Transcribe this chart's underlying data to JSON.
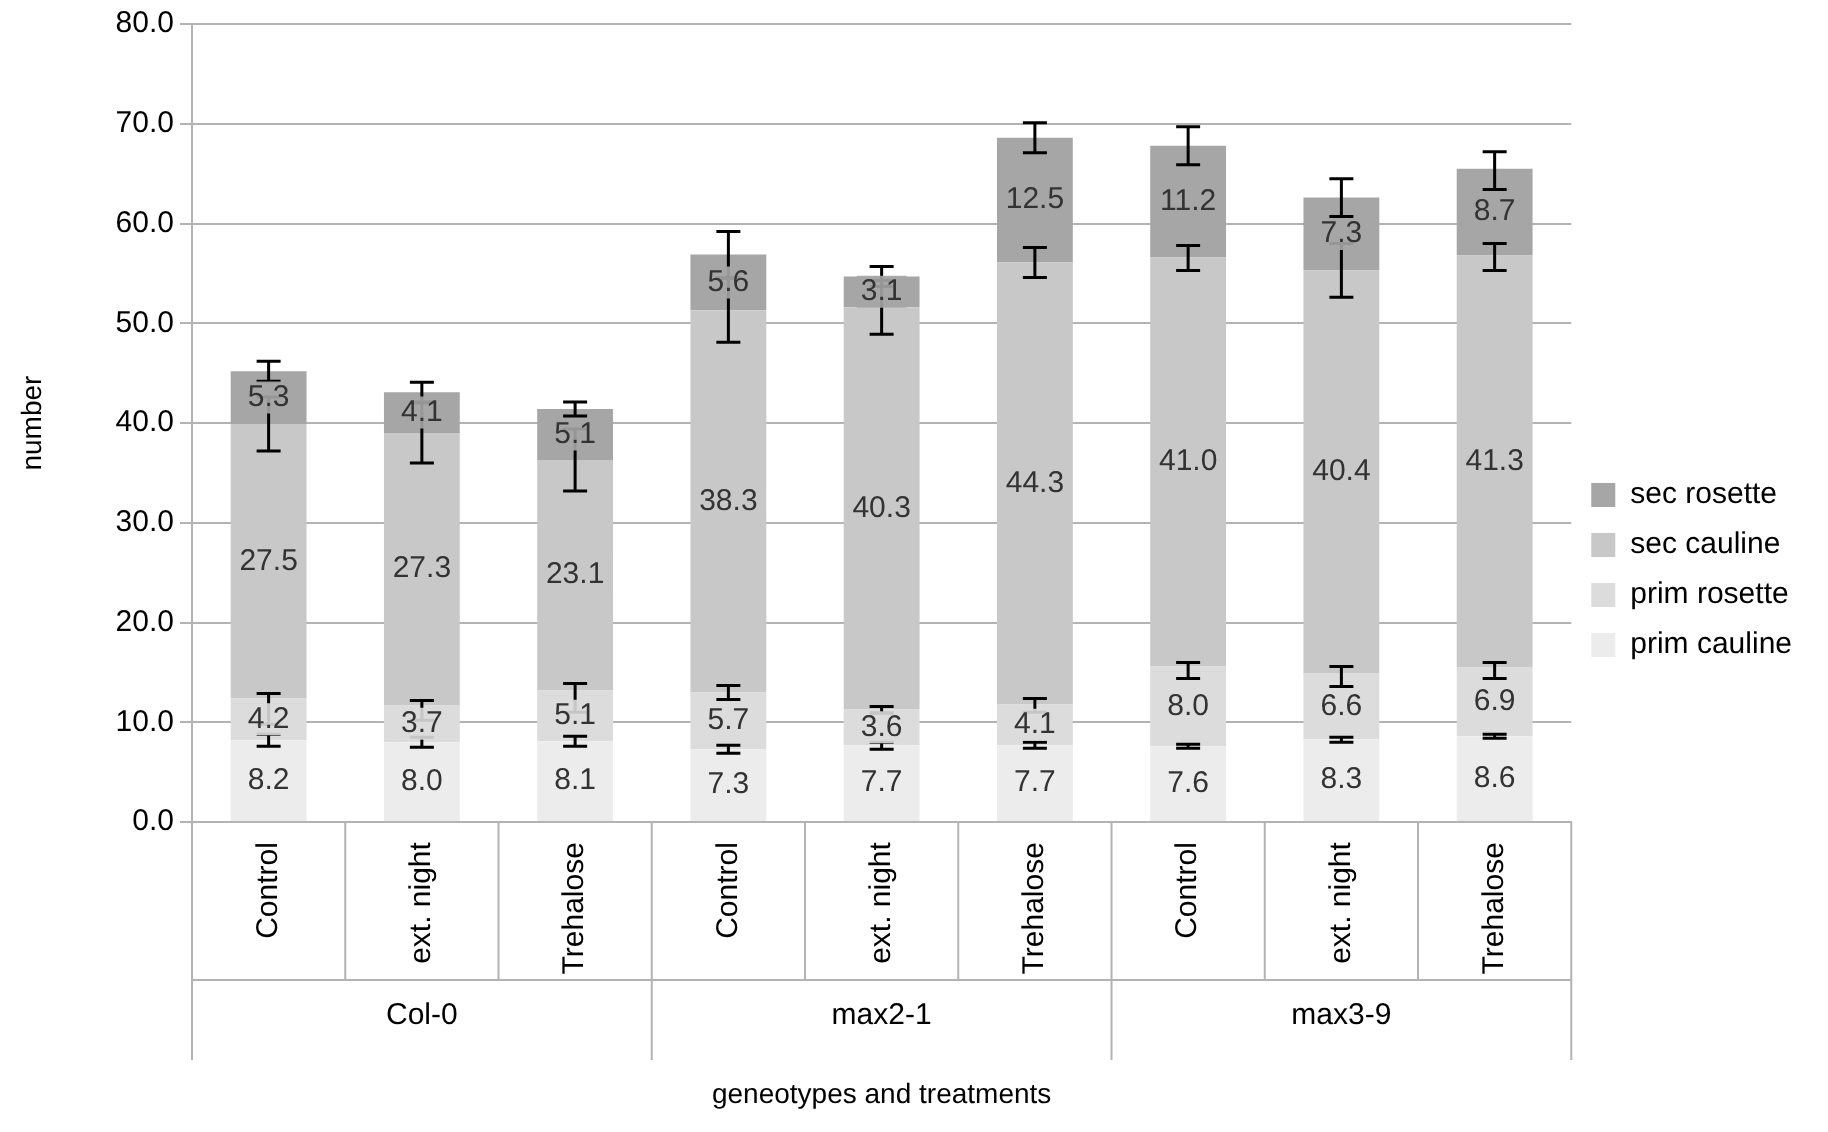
{
  "chart_data": {
    "type": "bar",
    "stacked": true,
    "xlabel": "geneotypes and treatments",
    "ylabel": "number",
    "categories": [
      "Control",
      "ext. night",
      "Trehalose",
      "Control",
      "ext. night",
      "Trehalose",
      "Control",
      "ext. night",
      "Trehalose"
    ],
    "annotations": [
      "Col-0",
      "max2-1",
      "max3-9"
    ],
    "series": [
      {
        "name": "prim cauline",
        "color": "#ececec",
        "values": [
          8.2,
          8.0,
          8.1,
          7.3,
          7.7,
          7.7,
          7.6,
          8.3,
          8.6
        ],
        "value_labels": [
          "8.2",
          "8.0",
          "8.1",
          "7.3",
          "7.7",
          "7.7",
          "7.6",
          "8.3",
          "8.6"
        ],
        "errors": [
          [
            7.6,
            8.8
          ],
          [
            7.5,
            8.5
          ],
          [
            7.6,
            8.6
          ],
          [
            6.9,
            7.7
          ],
          [
            7.3,
            8.0
          ],
          [
            7.4,
            8.0
          ],
          [
            7.4,
            7.8
          ],
          [
            8.0,
            8.5
          ],
          [
            8.4,
            8.8
          ]
        ]
      },
      {
        "name": "prim rosette",
        "color": "#dcdcdc",
        "values": [
          4.2,
          3.7,
          5.1,
          5.7,
          3.6,
          4.1,
          8.0,
          6.6,
          6.9
        ],
        "value_labels": [
          "4.2",
          "3.7",
          "5.1",
          "5.7",
          "3.6",
          "4.1",
          "8.0",
          "6.6",
          "6.9"
        ],
        "errors": [
          [
            9.8,
            12.9
          ],
          [
            10.2,
            12.2
          ],
          [
            11.0,
            13.9
          ],
          [
            12.3,
            13.7
          ],
          [
            10.9,
            11.6
          ],
          [
            11.0,
            12.4
          ],
          [
            14.4,
            16.0
          ],
          [
            13.6,
            15.6
          ],
          [
            14.4,
            16.0
          ]
        ]
      },
      {
        "name": "sec cauline",
        "color": "#c8c8c8",
        "values": [
          27.5,
          27.3,
          23.1,
          38.3,
          40.3,
          44.3,
          41.0,
          40.4,
          41.3
        ],
        "value_labels": [
          "27.5",
          "27.3",
          "23.1",
          "38.3",
          "40.3",
          "44.3",
          "41.0",
          "40.4",
          "41.3"
        ],
        "errors": [
          [
            37.2,
            42.6
          ],
          [
            36.0,
            42.0
          ],
          [
            33.2,
            39.4
          ],
          [
            48.1,
            54.5
          ],
          [
            48.9,
            54.3
          ],
          [
            54.6,
            57.6
          ],
          [
            55.3,
            57.8
          ],
          [
            52.6,
            58.0
          ],
          [
            55.3,
            58.0
          ]
        ]
      },
      {
        "name": "sec rosette",
        "color": "#a6a6a6",
        "values": [
          5.3,
          4.1,
          5.1,
          5.6,
          3.1,
          12.5,
          11.2,
          7.3,
          8.7
        ],
        "value_labels": [
          "5.3",
          "4.1",
          "5.1",
          "5.6",
          "3.1",
          "12.5",
          "11.2",
          "7.3",
          "8.7"
        ],
        "errors": [
          [
            44.2,
            46.2
          ],
          [
            42.1,
            44.1
          ],
          [
            40.7,
            42.1
          ],
          [
            54.6,
            59.2
          ],
          [
            53.7,
            55.7
          ],
          [
            67.1,
            70.1
          ],
          [
            65.9,
            69.7
          ],
          [
            60.7,
            64.5
          ],
          [
            63.4,
            67.2
          ]
        ]
      }
    ],
    "ylim": [
      0,
      80
    ],
    "yticks": [
      {
        "value": 0,
        "label": "0.0"
      },
      {
        "value": 10,
        "label": "10.0"
      },
      {
        "value": 20,
        "label": "20.0"
      },
      {
        "value": 30,
        "label": "30.0"
      },
      {
        "value": 40,
        "label": "40.0"
      },
      {
        "value": 50,
        "label": "50.0"
      },
      {
        "value": 60,
        "label": "60.0"
      },
      {
        "value": 70,
        "label": "70.0"
      },
      {
        "value": 80,
        "label": "80.0"
      }
    ],
    "grid": "y",
    "legend": "right"
  }
}
